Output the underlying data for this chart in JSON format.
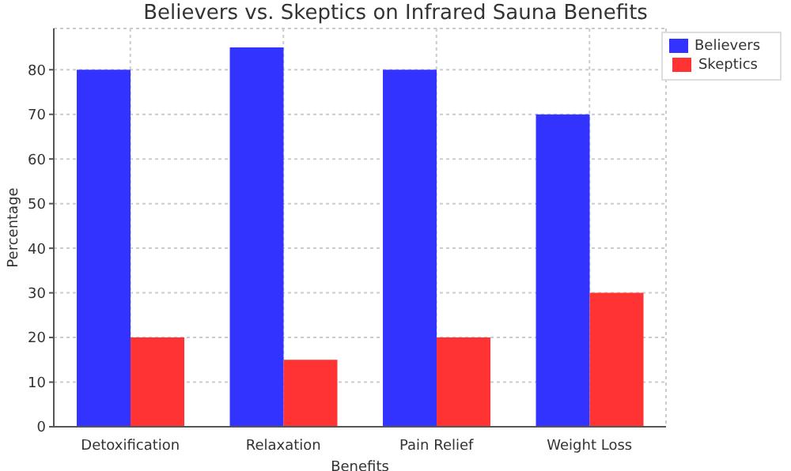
{
  "chart_data": {
    "type": "bar",
    "title": "Believers vs. Skeptics on Infrared Sauna Benefits",
    "xlabel": "Benefits",
    "ylabel": "Percentage",
    "categories": [
      "Detoxification",
      "Relaxation",
      "Pain Relief",
      "Weight Loss"
    ],
    "series": [
      {
        "name": "Believers",
        "color": "#3333ff",
        "values": [
          80,
          85,
          80,
          70
        ]
      },
      {
        "name": "Skeptics",
        "color": "#ff3333",
        "values": [
          20,
          15,
          20,
          30
        ]
      }
    ],
    "ylim": [
      0,
      89.25
    ],
    "yticks": [
      0,
      10,
      20,
      30,
      40,
      50,
      60,
      70,
      80
    ],
    "grid": true,
    "legend": "top right"
  }
}
